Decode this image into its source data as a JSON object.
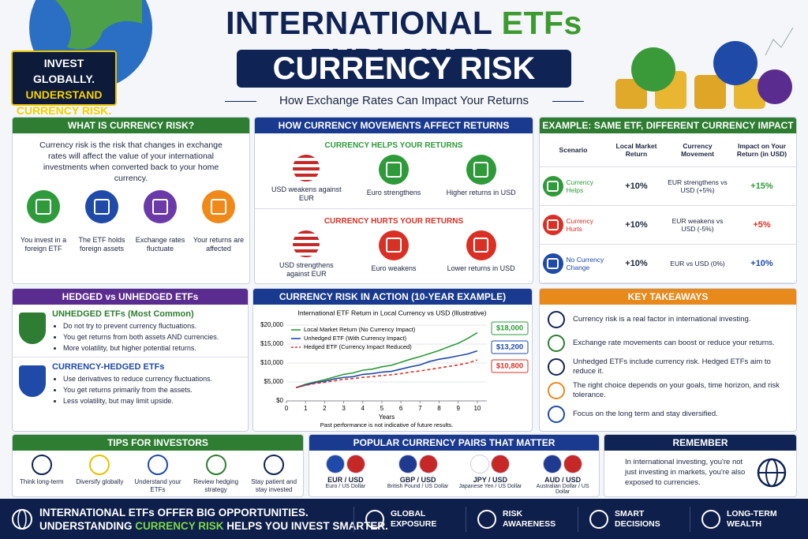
{
  "header": {
    "title_part1": "INTERNATIONAL",
    "title_highlight": "ETFs",
    "title_part2": "EXPLAINED",
    "subtitle": "CURRENCY RISK",
    "tagline": "How Exchange Rates Can Impact Your Returns",
    "badge": [
      "INVEST GLOBALLY.",
      "UNDERSTAND",
      "CURRENCY RISK."
    ]
  },
  "what_is": {
    "title": "WHAT IS CURRENCY RISK?",
    "text": "Currency risk is the risk that changes in exchange rates will affect the value of your international investments when converted back to your home currency.",
    "steps": [
      "You invest in a foreign ETF",
      "The ETF holds foreign assets",
      "Exchange rates fluctuate",
      "Your returns are affected"
    ]
  },
  "movements": {
    "title": "HOW CURRENCY MOVEMENTS AFFECT RETURNS",
    "helps": {
      "heading": "CURRENCY HELPS YOUR RETURNS",
      "items": [
        "USD weakens against EUR",
        "Euro strengthens",
        "Higher returns in USD"
      ]
    },
    "hurts": {
      "heading": "CURRENCY HURTS YOUR RETURNS",
      "items": [
        "USD strengthens against EUR",
        "Euro weakens",
        "Lower returns in USD"
      ]
    }
  },
  "example": {
    "title": "EXAMPLE: SAME ETF, DIFFERENT CURRENCY IMPACT",
    "headers": [
      "Scenario",
      "Local Market Return",
      "Currency Movement",
      "Impact on Your Return (in USD)"
    ],
    "rows": [
      [
        "Currency Helps",
        "+10%",
        "EUR strengthens vs USD (+5%)",
        "+15%"
      ],
      [
        "Currency Hurts",
        "+10%",
        "EUR weakens vs USD (-5%)",
        "+5%"
      ],
      [
        "No Currency Change",
        "+10%",
        "EUR vs USD (0%)",
        "+10%"
      ]
    ]
  },
  "hedged": {
    "title": "HEDGED vs UNHEDGED ETFs",
    "unhedged": {
      "heading": "UNHEDGED ETFs (Most Common)",
      "bullets": [
        "Do not try to prevent currency fluctuations.",
        "You get returns from both assets AND currencies.",
        "More volatility, but higher potential returns."
      ]
    },
    "hedged": {
      "heading": "CURRENCY-HEDGED ETFs",
      "bullets": [
        "Use derivatives to reduce currency fluctuations.",
        "You get returns primarily from the assets.",
        "Less volatility, but may limit upside."
      ]
    }
  },
  "chart_data": {
    "type": "line",
    "title": "CURRENCY RISK IN ACTION (10-YEAR EXAMPLE)",
    "subtitle": "International ETF Return in Local Currency vs USD (Illustrative)",
    "xlabel": "Years",
    "note": "Past performance is not indicative of future results.",
    "x": [
      0.5,
      1,
      1.5,
      2,
      2.5,
      3,
      3.5,
      4,
      4.5,
      5,
      5.5,
      6,
      6.5,
      7,
      7.5,
      8,
      8.5,
      9,
      9.5,
      10
    ],
    "xlim": [
      0,
      10.5
    ],
    "xticks": [
      0,
      1,
      2,
      3,
      4,
      5,
      6,
      7,
      8,
      9,
      10
    ],
    "ylim": [
      0,
      20000
    ],
    "yticks": [
      {
        "value": 0,
        "label": "$0"
      },
      {
        "value": 5000,
        "label": "$5,000"
      },
      {
        "value": 10000,
        "label": "$10,000"
      },
      {
        "value": 15000,
        "label": "$15,000"
      },
      {
        "value": 20000,
        "label": "$20,000"
      }
    ],
    "series": [
      {
        "name": "Local Market Return (No Currency Impact)",
        "color": "#2e9a3a",
        "dash": false,
        "values": [
          3500,
          4400,
          5000,
          5600,
          6300,
          7000,
          7400,
          8100,
          8400,
          9000,
          9400,
          10200,
          11000,
          11700,
          12500,
          13300,
          14300,
          15200,
          16500,
          18000
        ],
        "end_label": "$18,000"
      },
      {
        "name": "Unhedged ETF (With Currency Impact)",
        "color": "#1f4aa8",
        "dash": false,
        "values": [
          3500,
          4200,
          4800,
          5200,
          5800,
          6200,
          6400,
          7000,
          7200,
          7600,
          7800,
          8400,
          9000,
          9500,
          10400,
          11000,
          11400,
          11900,
          12400,
          13200
        ],
        "end_label": "$13,200"
      },
      {
        "name": "Hedged ETF (Currency Impact Reduced)",
        "color": "#d93025",
        "dash": true,
        "values": [
          3500,
          4100,
          4600,
          4900,
          5300,
          5700,
          5900,
          6200,
          6400,
          6700,
          6900,
          7200,
          7600,
          7900,
          8300,
          8700,
          9100,
          9500,
          10000,
          10800
        ],
        "end_label": "$10,800"
      }
    ]
  },
  "takeaways": {
    "title": "KEY TAKEAWAYS",
    "items": [
      "Currency risk is a real factor in international investing.",
      "Exchange rate movements can boost or reduce your returns.",
      "Unhedged ETFs include currency risk. Hedged ETFs aim to reduce it.",
      "The right choice depends on your goals, time horizon, and risk tolerance.",
      "Focus on the long term and stay diversified."
    ]
  },
  "tips": {
    "title": "TIPS FOR INVESTORS",
    "items": [
      "Think long-term",
      "Diversify globally",
      "Understand your ETFs",
      "Review hedging strategy",
      "Stay patient and stay invested"
    ]
  },
  "pairs": {
    "title": "POPULAR CURRENCY PAIRS THAT MATTER",
    "items": [
      {
        "pair": "EUR / USD",
        "name": "Euro / US Dollar"
      },
      {
        "pair": "GBP / USD",
        "name": "British Pound / US Dollar"
      },
      {
        "pair": "JPY / USD",
        "name": "Japanese Yen / US Dollar"
      },
      {
        "pair": "AUD / USD",
        "name": "Australian Dollar / US Dollar"
      }
    ]
  },
  "remember": {
    "title": "REMEMBER",
    "text": "In international investing, you're not just investing in markets, you're also exposed to currencies."
  },
  "footer": {
    "line1": "INTERNATIONAL ETFs OFFER BIG OPPORTUNITIES.",
    "line2_start": "UNDERSTANDING",
    "line2_highlight": "CURRENCY RISK",
    "line2_end": "HELPS YOU INVEST SMARTER.",
    "items": [
      "GLOBAL EXPOSURE",
      "RISK AWARENESS",
      "SMART DECISIONS",
      "LONG-TERM WEALTH"
    ]
  }
}
